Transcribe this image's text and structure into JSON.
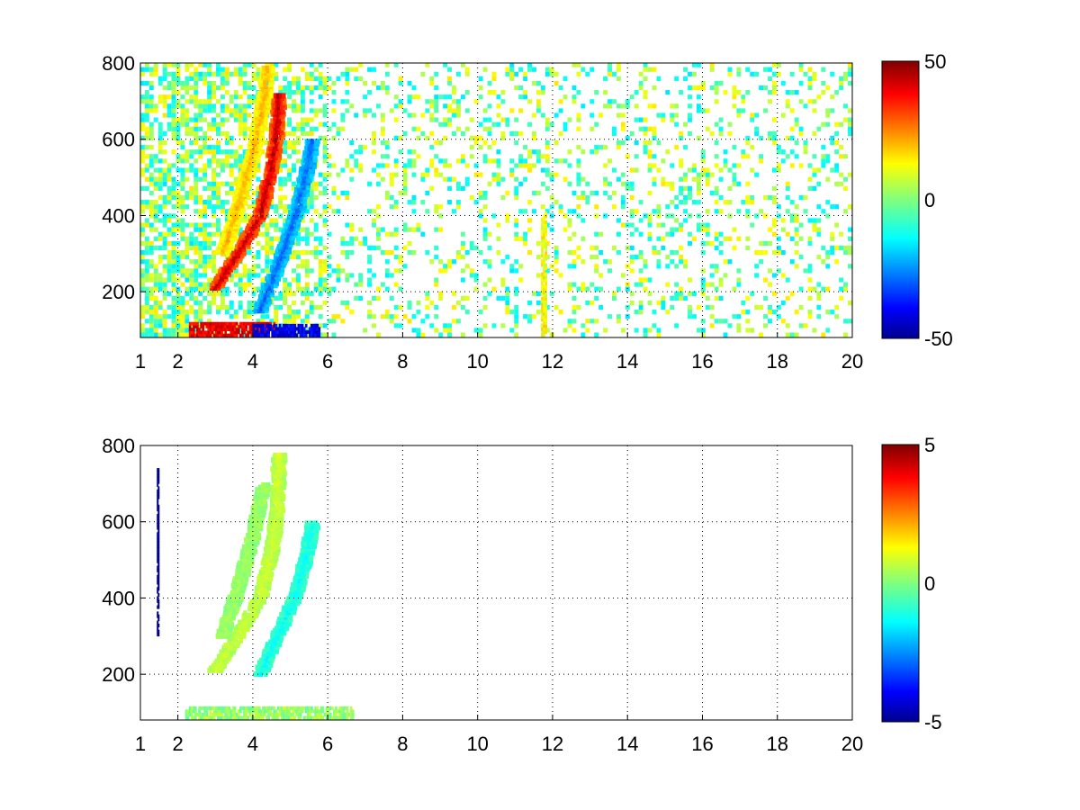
{
  "chart_data": [
    {
      "type": "heatmap",
      "title": "",
      "xlabel": "",
      "ylabel": "",
      "xlim": [
        1,
        20
      ],
      "ylim": [
        80,
        800
      ],
      "grid": true,
      "xticks": [
        1,
        2,
        4,
        6,
        8,
        10,
        12,
        14,
        16,
        18,
        20
      ],
      "yticks": [
        200,
        400,
        600,
        800
      ],
      "colorbar": {
        "min": -50,
        "max": 50,
        "ticks": [
          -50,
          0,
          50
        ],
        "colormap": "jet"
      },
      "features": [
        {
          "shape": "curve",
          "value": 45,
          "points": [
            [
              3.0,
              210
            ],
            [
              3.6,
              300
            ],
            [
              4.2,
              400
            ],
            [
              4.5,
              520
            ],
            [
              4.65,
              620
            ],
            [
              4.7,
              720
            ]
          ]
        },
        {
          "shape": "curve",
          "value": -28,
          "points": [
            [
              4.2,
              150
            ],
            [
              4.8,
              300
            ],
            [
              5.2,
              420
            ],
            [
              5.5,
              540
            ],
            [
              5.6,
              600
            ]
          ]
        },
        {
          "shape": "curve",
          "value": 20,
          "points": [
            [
              3.2,
              300
            ],
            [
              3.6,
              420
            ],
            [
              4.0,
              560
            ],
            [
              4.3,
              700
            ],
            [
              4.4,
              790
            ]
          ]
        },
        {
          "shape": "band",
          "value": 40,
          "x": [
            2.3,
            4.6
          ],
          "y": [
            82,
            120
          ]
        },
        {
          "shape": "band",
          "value": -40,
          "x": [
            4.0,
            5.8
          ],
          "y": [
            82,
            115
          ]
        },
        {
          "shape": "band",
          "value": 12,
          "x": [
            11.7,
            11.85
          ],
          "y": [
            82,
            410
          ]
        }
      ]
    },
    {
      "type": "heatmap",
      "title": "",
      "xlabel": "",
      "ylabel": "",
      "xlim": [
        1,
        20
      ],
      "ylim": [
        80,
        800
      ],
      "grid": true,
      "xticks": [
        1,
        2,
        4,
        6,
        8,
        10,
        12,
        14,
        16,
        18,
        20
      ],
      "yticks": [
        200,
        400,
        600,
        800
      ],
      "colorbar": {
        "min": -5,
        "max": 5,
        "ticks": [
          -5,
          0,
          5
        ],
        "colormap": "jet"
      },
      "features": [
        {
          "shape": "curve",
          "value": 0.8,
          "points": [
            [
              3.0,
              210
            ],
            [
              3.6,
              300
            ],
            [
              4.2,
              400
            ],
            [
              4.5,
              520
            ],
            [
              4.65,
              620
            ],
            [
              4.7,
              780
            ]
          ]
        },
        {
          "shape": "curve",
          "value": -1.2,
          "points": [
            [
              4.2,
              200
            ],
            [
              4.8,
              330
            ],
            [
              5.2,
              420
            ],
            [
              5.5,
              540
            ],
            [
              5.6,
              600
            ]
          ]
        },
        {
          "shape": "curve",
          "value": 0.3,
          "points": [
            [
              3.2,
              300
            ],
            [
              3.6,
              420
            ],
            [
              4.0,
              560
            ],
            [
              4.3,
              700
            ]
          ]
        },
        {
          "shape": "band",
          "value": 0.2,
          "x": [
            2.2,
            6.7
          ],
          "y": [
            82,
            115
          ]
        },
        {
          "shape": "band",
          "value": -5,
          "x": [
            1.45,
            1.5
          ],
          "y": [
            300,
            740
          ]
        }
      ]
    }
  ]
}
